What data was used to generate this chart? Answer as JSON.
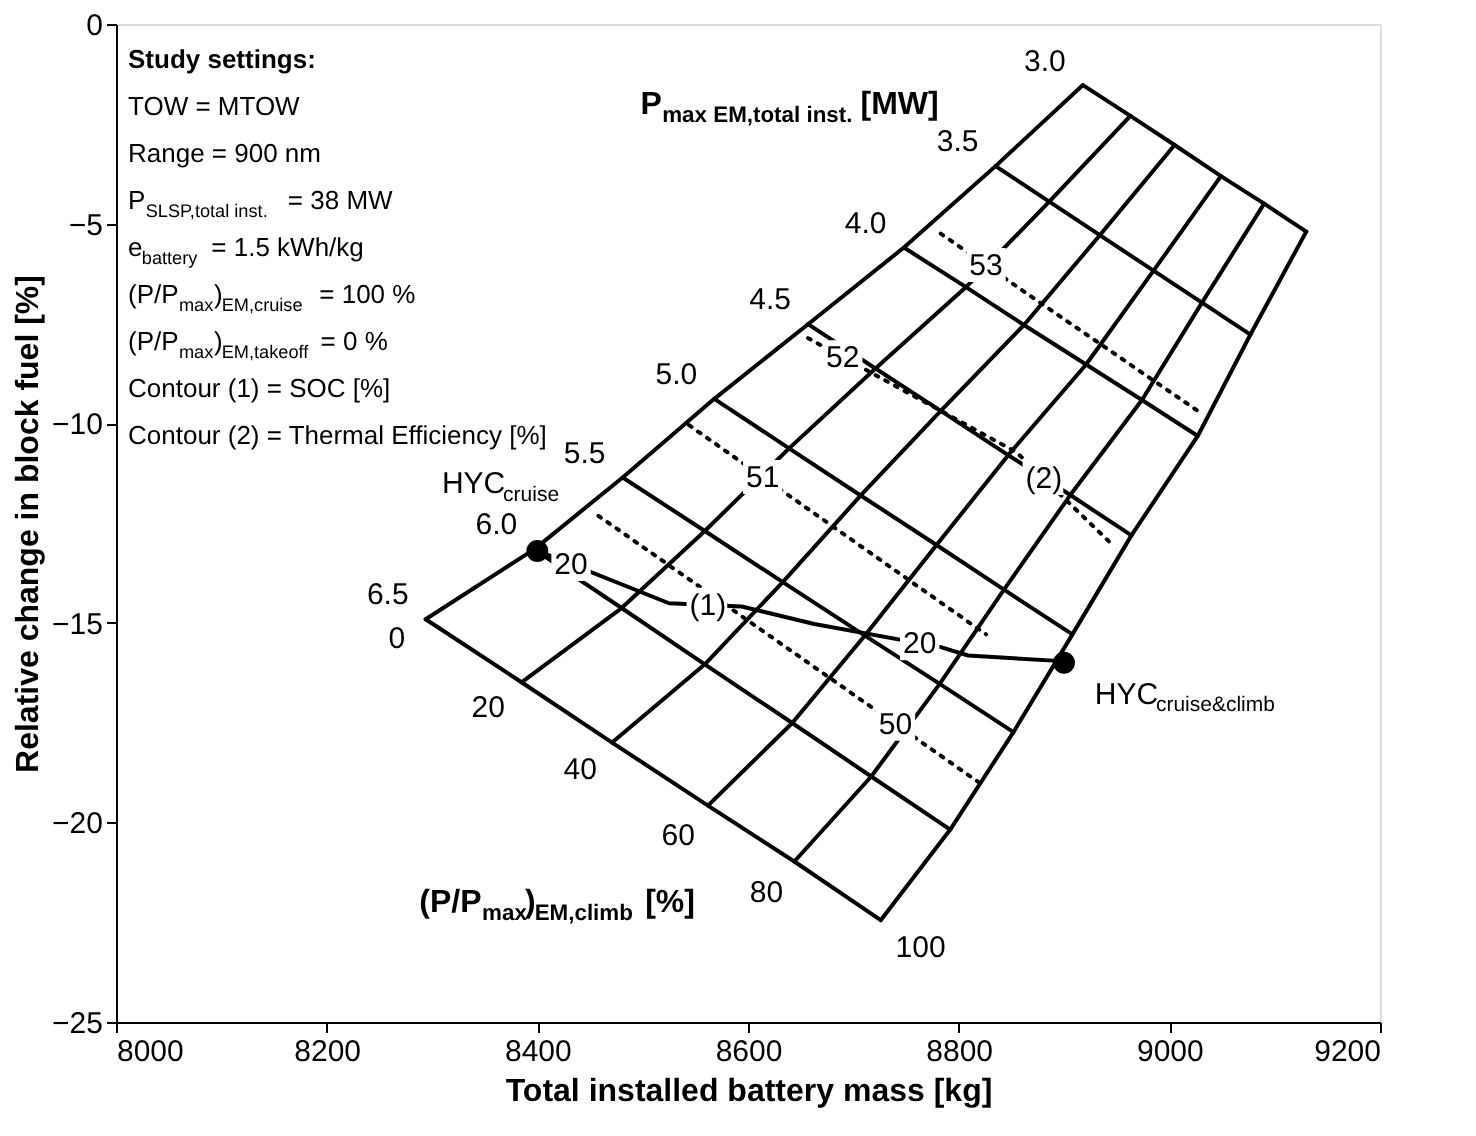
{
  "chart_data": {
    "type": "line",
    "xlabel": "Total installed battery mass [kg]",
    "ylabel": "Relative change in block fuel [%]",
    "xlim": [
      8000,
      9200
    ],
    "xticks": [
      8000,
      8200,
      8400,
      8600,
      8800,
      9000,
      9200
    ],
    "ylim": [
      -25,
      0
    ],
    "yticks": [
      -25,
      -20,
      -15,
      -10,
      -5,
      0
    ],
    "grid": false,
    "line_style": "solid",
    "marker": "none",
    "series": [
      {
        "color": "#000000",
        "x": [
          8918,
          8963,
          9005,
          9049,
          9090,
          9130
        ],
        "values": [
          -1.53,
          -2.3,
          -3.03,
          -3.81,
          -4.5,
          -5.2
        ]
      },
      {
        "color": "#000000",
        "x": [
          8835,
          8886,
          8934,
          8985,
          9031,
          9077
        ],
        "values": [
          -3.56,
          -4.45,
          -5.29,
          -6.18,
          -6.98,
          -7.78
        ]
      },
      {
        "color": "#000000",
        "x": [
          8748,
          8807,
          8862,
          8921,
          8974,
          9027
        ],
        "values": [
          -5.6,
          -6.59,
          -7.54,
          -8.53,
          -9.42,
          -10.32
        ]
      },
      {
        "color": "#000000",
        "x": [
          8657,
          8721,
          8783,
          8847,
          8906,
          8964
        ],
        "values": [
          -7.52,
          -8.63,
          -9.69,
          -10.8,
          -11.8,
          -12.81
        ]
      },
      {
        "color": "#000000",
        "x": [
          8568,
          8639,
          8707,
          8779,
          8843,
          8908
        ],
        "values": [
          -9.39,
          -10.63,
          -11.81,
          -13.05,
          -14.17,
          -15.29
        ]
      },
      {
        "color": "#000000",
        "x": [
          8481,
          8559,
          8633,
          8711,
          8782,
          8852
        ],
        "values": [
          -11.36,
          -12.7,
          -13.98,
          -15.32,
          -16.53,
          -17.74
        ]
      },
      {
        "color": "#000000",
        "x": [
          8397,
          8480,
          8559,
          8642,
          8717,
          8792
        ],
        "values": [
          -13.16,
          -14.63,
          -16.04,
          -17.51,
          -18.85,
          -20.18
        ]
      },
      {
        "color": "#000000",
        "x": [
          8294,
          8385,
          8471,
          8562,
          8644,
          8726
        ],
        "values": [
          -14.91,
          -16.49,
          -18.0,
          -19.58,
          -20.98,
          -22.45
        ]
      },
      {
        "color": "#000000",
        "x": [
          8918,
          8835,
          8748,
          8657,
          8568,
          8481,
          8397,
          8294
        ],
        "values": [
          -1.53,
          -3.56,
          -5.6,
          -7.52,
          -9.39,
          -11.36,
          -13.16,
          -14.91
        ]
      },
      {
        "color": "#000000",
        "x": [
          8963,
          8886,
          8807,
          8721,
          8639,
          8559,
          8480,
          8385
        ],
        "values": [
          -2.3,
          -4.45,
          -6.59,
          -8.63,
          -10.63,
          -12.7,
          -14.63,
          -16.49
        ]
      },
      {
        "color": "#000000",
        "x": [
          9005,
          8934,
          8862,
          8783,
          8707,
          8633,
          8559,
          8471
        ],
        "values": [
          -3.03,
          -5.29,
          -7.54,
          -9.69,
          -11.81,
          -13.98,
          -16.04,
          -18.0
        ]
      },
      {
        "color": "#000000",
        "x": [
          9049,
          8985,
          8921,
          8847,
          8779,
          8711,
          8642,
          8562
        ],
        "values": [
          -3.81,
          -6.18,
          -8.53,
          -10.8,
          -13.05,
          -15.32,
          -17.51,
          -19.58
        ]
      },
      {
        "color": "#000000",
        "x": [
          9090,
          9031,
          8974,
          8906,
          8843,
          8782,
          8717,
          8644
        ],
        "values": [
          -4.5,
          -6.98,
          -9.42,
          -11.8,
          -14.17,
          -16.53,
          -18.85,
          -20.98
        ]
      },
      {
        "color": "#000000",
        "x": [
          9130,
          9077,
          9027,
          8964,
          8908,
          8852,
          8792,
          8726
        ],
        "values": [
          -5.2,
          -7.78,
          -10.32,
          -12.81,
          -15.29,
          -17.74,
          -20.18,
          -22.45
        ]
      },
      {
        "color": "#000000",
        "x": [
          8397,
          8525,
          8594,
          8663,
          8783,
          8809,
          8898
        ],
        "values": [
          -13.16,
          -14.51,
          -14.59,
          -15.03,
          -15.61,
          -15.82,
          -15.96
        ]
      },
      {
        "color": "#000000",
        "line_style": "dotted",
        "x": [
          8783,
          8869,
          9028
        ],
        "values": [
          -5.25,
          -6.83,
          -9.71
        ]
      },
      {
        "color": "#000000",
        "line_style": "dotted",
        "x": [
          8657,
          8855,
          8945
        ],
        "values": [
          -7.87,
          -10.73,
          -13.02
        ]
      },
      {
        "color": "#000000",
        "line_style": "dotted",
        "x": [
          8544,
          8826
        ],
        "values": [
          -10.05,
          -15.29
        ]
      },
      {
        "color": "#000000",
        "line_style": "dotted",
        "x": [
          8458,
          8822
        ],
        "values": [
          -12.32,
          -19.05
        ]
      },
      {
        "type": "scatter",
        "marker": "circle",
        "color": "#000000",
        "x": [
          8400,
          8900
        ],
        "values": [
          -13.2,
          -16.0
        ]
      }
    ],
    "annotations": [
      "Study settings:",
      "TOW = MTOW",
      "Range = 900 nm",
      "P$_{SLSP,total inst.}$ = 38 MW",
      "e$_{battery}$ = 1.5 kWh/kg",
      "(P/P$_{max}$)$_{EM,cruise}$ = 100 %",
      "(P/P$_{max}$)$_{EM,takeoff}$ = 0 %",
      "Contour (1) = SOC [%]",
      "Contour (2) = Thermal Efficiency [%]",
      {
        "text": "3.0",
        "x": 8918,
        "y": -1.53
      },
      {
        "text": "3.5",
        "x": 8835,
        "y": -3.56
      },
      {
        "text": "4.0",
        "x": 8748,
        "y": -5.6
      },
      {
        "text": "4.5",
        "x": 8657,
        "y": -7.52
      },
      {
        "text": "5.0",
        "x": 8568,
        "y": -9.39
      },
      {
        "text": "5.5",
        "x": 8481,
        "y": -11.36
      },
      {
        "text": "6.0",
        "x": 8397,
        "y": -13.16
      },
      {
        "text": "6.5",
        "x": 8294,
        "y": -14.91
      },
      {
        "text": "0",
        "x": 8294,
        "y": -14.91
      },
      {
        "text": "20",
        "x": 8385,
        "y": -16.49
      },
      {
        "text": "40",
        "x": 8471,
        "y": -18.0
      },
      {
        "text": "60",
        "x": 8562,
        "y": -19.58
      },
      {
        "text": "80",
        "x": 8644,
        "y": -20.98
      },
      {
        "text": "100",
        "x": 8726,
        "y": -22.45
      },
      {
        "text": "53",
        "x": 8826,
        "y": -6.04
      },
      {
        "text": "52",
        "x": 8690,
        "y": -8.35
      },
      {
        "text": "51",
        "x": 8614,
        "y": -11.35
      },
      {
        "text": "50",
        "x": 8740,
        "y": -17.53
      },
      {
        "text": "(2)",
        "x": 8880,
        "y": -11.37
      },
      {
        "text": "(1)",
        "x": 8561,
        "y": -14.55
      },
      {
        "text": "20",
        "x": 8432,
        "y": -13.53
      },
      {
        "text": "20",
        "x": 8763,
        "y": -15.51
      },
      {
        "text": "HYC$_{cruise}$",
        "x": 8400,
        "y": -13.2
      },
      {
        "text": "HYC$_{cruise&climb}$",
        "x": 8900,
        "y": -16.0
      },
      "P$_{max EM,total inst.}$ [MW]",
      "(P/P$_{max}$)$_{EM,climb}$ [%]"
    ]
  }
}
